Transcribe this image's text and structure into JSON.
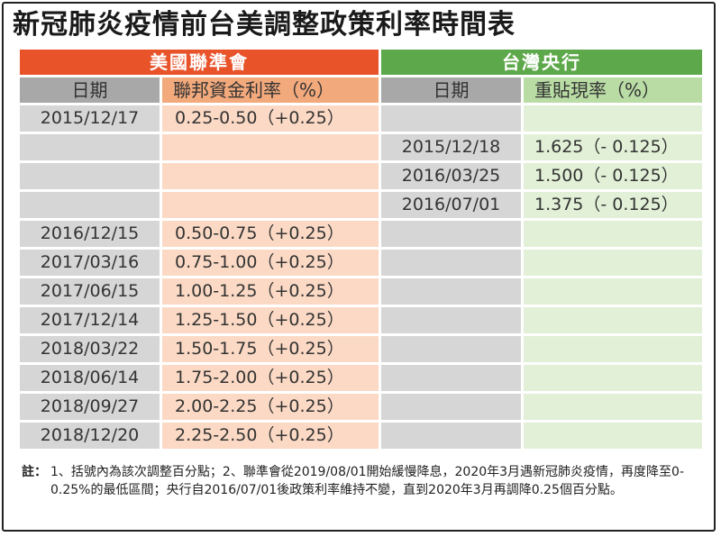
{
  "title": "新冠肺炎疫情前台美調整政策利率時間表",
  "us": {
    "header": "美國聯準會",
    "date_label": "日期",
    "rate_label": "聯邦資金利率（%）"
  },
  "tw": {
    "header": "台灣央行",
    "date_label": "日期",
    "rate_label": "重貼現率（%）"
  },
  "rows": [
    {
      "us_date": "2015/12/17",
      "us_rate": "0.25-0.50（+0.25）",
      "tw_date": "",
      "tw_rate": ""
    },
    {
      "us_date": "",
      "us_rate": "",
      "tw_date": "2015/12/18",
      "tw_rate": "1.625（- 0.125）"
    },
    {
      "us_date": "",
      "us_rate": "",
      "tw_date": "2016/03/25",
      "tw_rate": "1.500（- 0.125）"
    },
    {
      "us_date": "",
      "us_rate": "",
      "tw_date": "2016/07/01",
      "tw_rate": "1.375（- 0.125）"
    },
    {
      "us_date": "2016/12/15",
      "us_rate": "0.50-0.75（+0.25）",
      "tw_date": "",
      "tw_rate": ""
    },
    {
      "us_date": "2017/03/16",
      "us_rate": "0.75-1.00（+0.25）",
      "tw_date": "",
      "tw_rate": ""
    },
    {
      "us_date": "2017/06/15",
      "us_rate": "1.00-1.25（+0.25）",
      "tw_date": "",
      "tw_rate": ""
    },
    {
      "us_date": "2017/12/14",
      "us_rate": "1.25-1.50（+0.25）",
      "tw_date": "",
      "tw_rate": ""
    },
    {
      "us_date": "2018/03/22",
      "us_rate": "1.50-1.75（+0.25）",
      "tw_date": "",
      "tw_rate": ""
    },
    {
      "us_date": "2018/06/14",
      "us_rate": "1.75-2.00（+0.25）",
      "tw_date": "",
      "tw_rate": ""
    },
    {
      "us_date": "2018/09/27",
      "us_rate": "2.00-2.25（+0.25）",
      "tw_date": "",
      "tw_rate": ""
    },
    {
      "us_date": "2018/12/20",
      "us_rate": "2.25-2.50（+0.25）",
      "tw_date": "",
      "tw_rate": ""
    }
  ],
  "footnote": {
    "label": "註：",
    "text": "1、括號內為該次調整百分點；2、聯準會從2019/08/01開始緩慢降息，2020年3月遇新冠肺炎疫情，再度降至0-0.25%的最低區間；央行自2016/07/01後政策利率維持不變，直到2020年3月再調降0.25個百分點。"
  },
  "colors": {
    "us_header": "#e8532a",
    "tw_header": "#5da84a",
    "date_header": "#a8a8a8",
    "us_rate_header": "#f2a97c",
    "tw_rate_header": "#b9dca5",
    "date_cell": "#d6d6d6",
    "us_rate_cell": "#fbd9c4",
    "tw_rate_cell": "#e1f0d6"
  }
}
